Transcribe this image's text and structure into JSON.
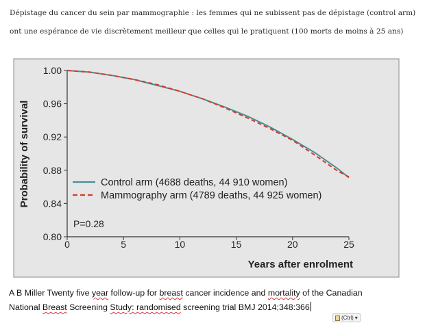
{
  "intro": {
    "line1": "Dépistage du cancer du sein par mammographie : les femmes qui ne subissent pas de dépistage (control arm)",
    "line2": "ont une espérance de vie discrètement meilleur que celles qui le pratiquent (100 morts de moins à 25 ans)"
  },
  "chart_data": {
    "type": "line",
    "title": "",
    "xlabel": "Years after enrolment",
    "ylabel": "Probability of survival",
    "xlim": [
      0,
      25
    ],
    "ylim": [
      0.8,
      1.0
    ],
    "xticks": [
      "0",
      "5",
      "10",
      "15",
      "20",
      "25"
    ],
    "yticks": [
      "1.00",
      "0.96",
      "0.92",
      "0.88",
      "0.84",
      "0.80"
    ],
    "series": [
      {
        "name": "Control arm (4688 deaths, 44 910 women)",
        "color": "#4a8e96",
        "style": "solid",
        "x": [
          0,
          2,
          4,
          6,
          8,
          10,
          12,
          14,
          16,
          18,
          20,
          22,
          24,
          25
        ],
        "y": [
          1.0,
          0.998,
          0.994,
          0.989,
          0.982,
          0.975,
          0.966,
          0.956,
          0.945,
          0.932,
          0.917,
          0.901,
          0.882,
          0.871
        ]
      },
      {
        "name": "Mammography arm (4789 deaths, 44 925 women)",
        "color": "#d43b30",
        "style": "dashed",
        "x": [
          0,
          2,
          4,
          6,
          8,
          10,
          12,
          14,
          16,
          18,
          20,
          22,
          24,
          25
        ],
        "y": [
          1.0,
          0.998,
          0.994,
          0.989,
          0.983,
          0.975,
          0.966,
          0.955,
          0.943,
          0.93,
          0.916,
          0.898,
          0.879,
          0.872
        ]
      }
    ],
    "annotation": "P=0.28",
    "legend_position": "lower-left",
    "grid": false
  },
  "caption": {
    "p1": "A B Miller Twenty five ",
    "w_year": "year",
    "p2": " follow-up for ",
    "w_breast": "breast",
    "p3": " cancer incidence and ",
    "w_mortality": "mortality",
    "p4": " of the Canadian",
    "p5": "National ",
    "w_breast2": "Breast",
    "p6": " Screening ",
    "w_study": "Study: randomised",
    "p7": " screening trial  BMJ 2014;348:366"
  },
  "paste_options": {
    "label": "(Ctrl)",
    "arrow": "▾"
  }
}
